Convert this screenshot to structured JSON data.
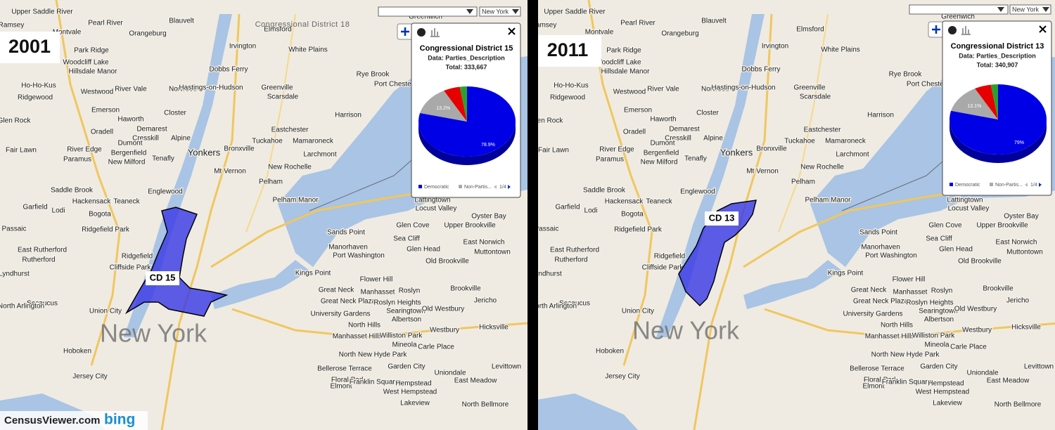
{
  "panels": [
    {
      "year": "2001",
      "district_label": "CD 15",
      "search": "New York",
      "overlay": "Congressional District 18",
      "city_label": "New York",
      "places": [
        "Upper Saddle River",
        "Pearl River",
        "Montvale",
        "Orangeburg",
        "Ramsey",
        "Park Ridge",
        "Blauvelt",
        "Elmsford",
        "Woodcliff Lake",
        "Hillsdale Manor",
        "Ho-Ho-Kus",
        "Westwood",
        "River Vale",
        "Norwood",
        "Ridgewood",
        "Irvington",
        "White Plains",
        "Dobbs Ferry",
        "Hastings-on-Hudson",
        "Greenville",
        "Scarsdale",
        "Rye Brook",
        "Port Chester",
        "Harrison",
        "Emerson",
        "Haworth",
        "Demarest",
        "Closter",
        "Cresskill",
        "Alpine",
        "Eastchester",
        "Tuckahoe",
        "Mamaroneck",
        "Glen Rock",
        "Oradell",
        "Dumont",
        "Bergenfield",
        "Tenafly",
        "Yonkers",
        "Bronxville",
        "Larchmont",
        "Fair Lawn",
        "River Edge",
        "Paramus",
        "New Milford",
        "Mt Vernon",
        "New Rochelle",
        "Englewood",
        "Pelham",
        "Saddle Brook",
        "Hackensack",
        "Teaneck",
        "Pelham Manor",
        "Garfield",
        "Lodi",
        "Bogota",
        "Ridgefield Park",
        "Passaic",
        "Ridgefield",
        "East Rutherford",
        "Rutherford",
        "Cliffside Park",
        "Lyndhurst",
        "Secaucus",
        "Union City",
        "North Arlington",
        "Hoboken",
        "Jersey City",
        "Lattingtown",
        "Locust Valley",
        "Oyster Bay",
        "Upper Brookville",
        "Glen Cove",
        "Sands Point",
        "Manorhaven",
        "Sea Cliff",
        "East Norwich",
        "Muttontown",
        "Glen Head",
        "Port Washington",
        "Old Brookville",
        "Kings Point",
        "Flower Hill",
        "Great Neck",
        "Manhasset",
        "Roslyn",
        "Brookville",
        "Great Neck Plaza",
        "Roslyn Heights",
        "University Gardens",
        "Searingtown",
        "Old Westbury",
        "Jericho",
        "North Hills",
        "Albertson",
        "Westbury",
        "Hicksville",
        "Manhasset Hills",
        "Williston Park",
        "Mineola",
        "Carle Place",
        "North New Hyde Park",
        "Garden City",
        "Levittown",
        "Bellerose Terrace",
        "Floral Park",
        "Elmont",
        "Franklin Square",
        "Hempstead",
        "Uniondale",
        "East Meadow",
        "West Hempstead",
        "North Bellmore",
        "Lakeview",
        "Greenwich"
      ],
      "popup": {
        "title": "Congressional District 15",
        "data_line": "Data: Parties_Description",
        "total": "Total: 333,667",
        "pager": "1/4",
        "chart_data": {
          "type": "pie",
          "categories": [
            "Democratic",
            "Non-Partis...",
            null,
            null
          ],
          "values": [
            78.9,
            13.2,
            5.5,
            2.4
          ],
          "value_labels": [
            "78.9%",
            "13.2%",
            null,
            null
          ],
          "colors": [
            "#0000e6",
            "#a9a9a9",
            "#e60000",
            "#2ca02c"
          ]
        }
      }
    },
    {
      "year": "2011",
      "district_label": "CD 13",
      "search": "New York",
      "city_label": "New York",
      "places": [
        "Upper Saddle River",
        "Pearl River",
        "Montvale",
        "Orangeburg",
        "Ramsey",
        "Park Ridge",
        "Blauvelt",
        "Elmsford",
        "Woodcliff Lake",
        "Hillsdale Manor",
        "Ho-Ho-Kus",
        "Westwood",
        "River Vale",
        "Norwood",
        "Ridgewood",
        "Irvington",
        "White Plains",
        "Dobbs Ferry",
        "Hastings-on-Hudson",
        "Greenville",
        "Scarsdale",
        "Rye Brook",
        "Port Chester",
        "Harrison",
        "Emerson",
        "Haworth",
        "Demarest",
        "Closter",
        "Cresskill",
        "Alpine",
        "Eastchester",
        "Tuckahoe",
        "Mamaroneck",
        "Glen Rock",
        "Oradell",
        "Dumont",
        "Bergenfield",
        "Tenafly",
        "Yonkers",
        "Bronxville",
        "Larchmont",
        "Fair Lawn",
        "River Edge",
        "Paramus",
        "New Milford",
        "Mt Vernon",
        "New Rochelle",
        "Englewood",
        "Pelham",
        "Saddle Brook",
        "Hackensack",
        "Teaneck",
        "Pelham Manor",
        "Garfield",
        "Lodi",
        "Bogota",
        "Ridgefield Park",
        "Passaic",
        "Ridgefield",
        "East Rutherford",
        "Rutherford",
        "Cliffside Park",
        "Lyndhurst",
        "Secaucus",
        "Union City",
        "North Arlington",
        "Hoboken",
        "Jersey City",
        "Lattingtown",
        "Locust Valley",
        "Oyster Bay",
        "Upper Brookville",
        "Glen Cove",
        "Sands Point",
        "Manorhaven",
        "Sea Cliff",
        "East Norwich",
        "Muttontown",
        "Glen Head",
        "Port Washington",
        "Old Brookville",
        "Kings Point",
        "Flower Hill",
        "Great Neck",
        "Manhasset",
        "Roslyn",
        "Brookville",
        "Great Neck Plaza",
        "Roslyn Heights",
        "University Gardens",
        "Searingtown",
        "Old Westbury",
        "Jericho",
        "North Hills",
        "Albertson",
        "Westbury",
        "Hicksville",
        "Manhasset Hills",
        "Williston Park",
        "Mineola",
        "Carle Place",
        "North New Hyde Park",
        "Garden City",
        "Levittown",
        "Bellerose Terrace",
        "Floral Park",
        "Elmont",
        "Franklin Square",
        "Hempstead",
        "Uniondale",
        "East Meadow",
        "West Hempstead",
        "North Bellmore",
        "Lakeview",
        "Greenwich"
      ],
      "popup": {
        "title": "Congressional District 13",
        "data_line": "Data: Parties_Description",
        "total": "Total: 340,907",
        "pager": "1/4",
        "chart_data": {
          "type": "pie",
          "categories": [
            "Democratic",
            "Non-Partis...",
            null,
            null
          ],
          "values": [
            79,
            13.1,
            5.5,
            2.4
          ],
          "value_labels": [
            "79%",
            "13.1%",
            null,
            null
          ],
          "colors": [
            "#0000e6",
            "#a9a9a9",
            "#e60000",
            "#2ca02c"
          ]
        }
      }
    }
  ],
  "footer": {
    "site": "CensusViewer.com",
    "map": "bing"
  }
}
